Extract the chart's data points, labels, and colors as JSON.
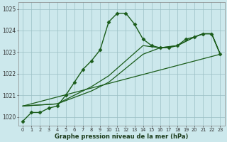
{
  "xlabel": "Graphe pression niveau de la mer (hPa)",
  "bg_color": "#cce8ec",
  "grid_color": "#9bbfc4",
  "line_color": "#1a5c1a",
  "x_ticks": [
    0,
    1,
    2,
    3,
    4,
    5,
    6,
    7,
    8,
    9,
    10,
    11,
    12,
    13,
    14,
    15,
    16,
    17,
    18,
    19,
    20,
    21,
    22,
    23
  ],
  "ylim": [
    1019.6,
    1025.3
  ],
  "yticks": [
    1020,
    1021,
    1022,
    1023,
    1024,
    1025
  ],
  "series": [
    {
      "x": [
        0,
        1,
        2,
        3,
        4,
        5,
        6,
        7,
        8,
        9,
        10,
        11,
        12,
        13,
        14,
        15,
        16,
        17,
        18,
        19,
        20,
        21,
        22,
        23
      ],
      "y": [
        1019.8,
        1020.2,
        1020.2,
        1020.4,
        1020.5,
        1021.0,
        1021.6,
        1022.2,
        1022.6,
        1023.1,
        1024.4,
        1024.8,
        1024.8,
        1024.3,
        1023.6,
        1023.3,
        1023.2,
        1023.2,
        1023.3,
        1023.6,
        1023.7,
        1023.85,
        1023.85,
        1022.9
      ],
      "marker": "D",
      "markersize": 2.5,
      "linewidth": 1.0,
      "linestyle": "-"
    },
    {
      "x": [
        0,
        23
      ],
      "y": [
        1020.5,
        1022.9
      ],
      "marker": null,
      "markersize": 0,
      "linewidth": 0.9,
      "linestyle": "-"
    },
    {
      "x": [
        0,
        4,
        8,
        10,
        14,
        16,
        17,
        18,
        20,
        21,
        22,
        23
      ],
      "y": [
        1020.5,
        1020.6,
        1021.2,
        1021.6,
        1022.9,
        1023.2,
        1023.25,
        1023.3,
        1023.7,
        1023.85,
        1023.85,
        1022.9
      ],
      "marker": null,
      "markersize": 0,
      "linewidth": 0.9,
      "linestyle": "-"
    },
    {
      "x": [
        0,
        4,
        8,
        10,
        14,
        16,
        17,
        18,
        20,
        21,
        22,
        23
      ],
      "y": [
        1020.5,
        1020.6,
        1021.4,
        1021.9,
        1023.3,
        1023.2,
        1023.25,
        1023.3,
        1023.7,
        1023.85,
        1023.85,
        1022.9
      ],
      "marker": null,
      "markersize": 0,
      "linewidth": 0.9,
      "linestyle": "-"
    }
  ]
}
